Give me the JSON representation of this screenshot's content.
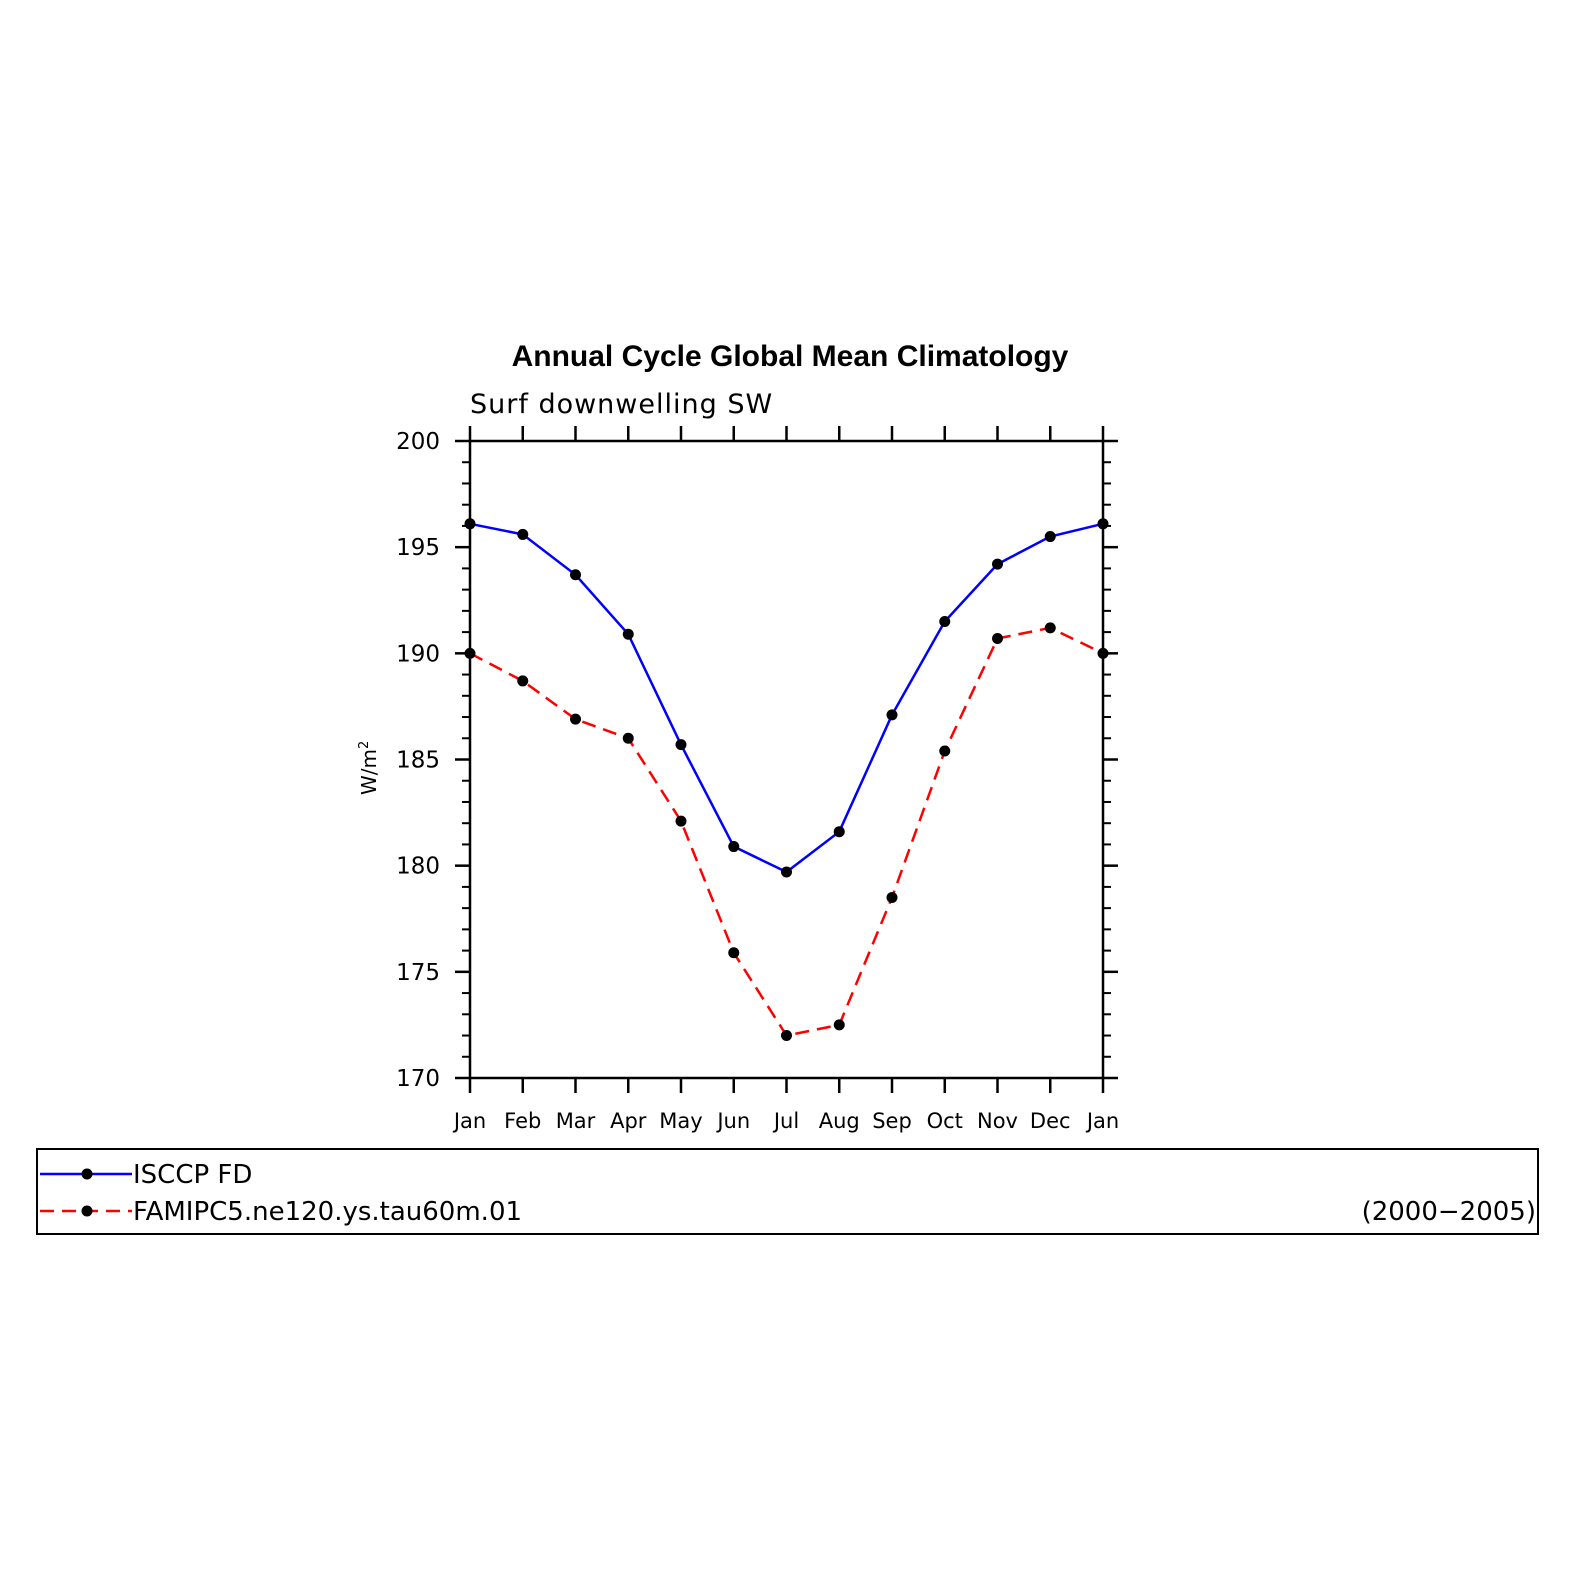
{
  "chart_data": {
    "type": "line",
    "title": "Annual Cycle Global Mean Climatology",
    "subtitle": "Surf downwelling SW",
    "ylabel_base": "W/m",
    "ylabel_sup": "2",
    "xlabel": "",
    "categories": [
      "Jan",
      "Feb",
      "Mar",
      "Apr",
      "May",
      "Jun",
      "Jul",
      "Aug",
      "Sep",
      "Oct",
      "Nov",
      "Dec",
      "Jan"
    ],
    "ylim": [
      170,
      200
    ],
    "yticks": [
      170,
      175,
      180,
      185,
      190,
      195,
      200
    ],
    "grid": false,
    "series": [
      {
        "name": "ISCCP FD",
        "color": "#0000ff",
        "dash": "solid",
        "values": [
          196.1,
          195.6,
          193.7,
          190.9,
          185.7,
          180.9,
          179.7,
          181.6,
          187.1,
          191.5,
          194.2,
          195.5,
          196.1
        ]
      },
      {
        "name": "FAMIPC5.ne120.ys.tau60m.01",
        "color": "#ff0000",
        "dash": "dashed",
        "values": [
          190.0,
          188.7,
          186.9,
          186.0,
          182.1,
          175.9,
          172.0,
          172.5,
          178.5,
          185.4,
          190.7,
          191.2,
          190.0
        ]
      }
    ],
    "legend": {
      "placement": "bottom",
      "period": "(2000−2005)"
    }
  }
}
